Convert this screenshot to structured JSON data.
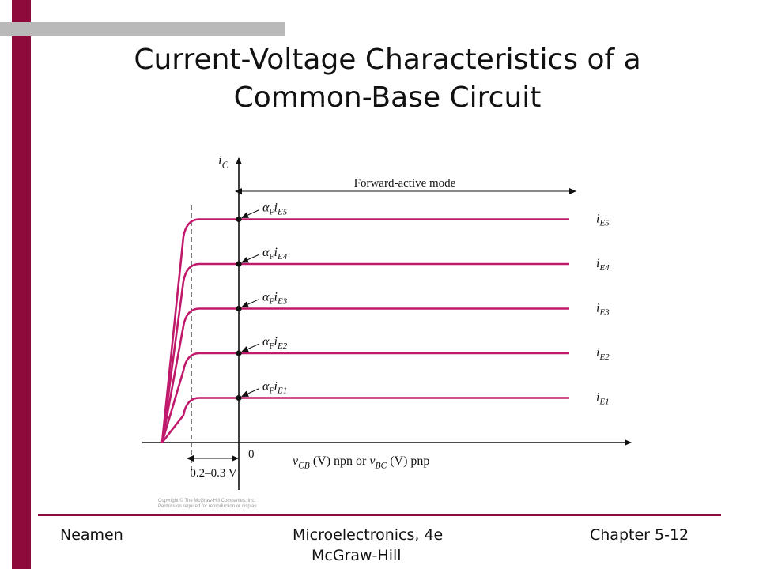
{
  "slide": {
    "title_line1": "Current-Voltage Characteristics of a",
    "title_line2": "Common-Base Circuit",
    "accent_color": "#8e0a3a",
    "footer": {
      "left": "Neamen",
      "center_line1": "Microelectronics, 4e",
      "center_line2": "McGraw-Hill",
      "right": "Chapter 5-12"
    }
  },
  "chart_data": {
    "type": "line",
    "xlabel_parts": [
      "v",
      "CB",
      " (V) npn or ",
      "v",
      "BC",
      " (V) pnp"
    ],
    "ylabel_parts": [
      "i",
      "C"
    ],
    "origin_label": "0",
    "region_label": "Forward-active mode",
    "offset_label": "0.2–0.3 V",
    "curve_color": "#c0186a",
    "series": [
      {
        "name": "iE1",
        "label": [
          "i",
          "E1"
        ],
        "marker_label": [
          "α",
          "F",
          "i",
          "E1"
        ],
        "level": 1
      },
      {
        "name": "iE2",
        "label": [
          "i",
          "E2"
        ],
        "marker_label": [
          "α",
          "F",
          "i",
          "E2"
        ],
        "level": 2
      },
      {
        "name": "iE3",
        "label": [
          "i",
          "E3"
        ],
        "marker_label": [
          "α",
          "F",
          "i",
          "E3"
        ],
        "level": 3
      },
      {
        "name": "iE4",
        "label": [
          "i",
          "E4"
        ],
        "marker_label": [
          "α",
          "F",
          "i",
          "E4"
        ],
        "level": 4
      },
      {
        "name": "iE5",
        "label": [
          "i",
          "E5"
        ],
        "marker_label": [
          "α",
          "F",
          "i",
          "E5"
        ],
        "level": 5
      }
    ],
    "copyright_line1": "Copyright © The McGraw-Hill Companies, Inc.",
    "copyright_line2": "Permission required for reproduction or display."
  }
}
